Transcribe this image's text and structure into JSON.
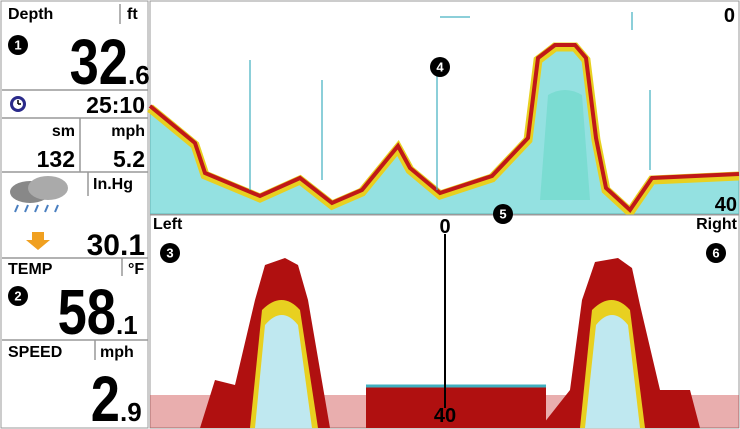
{
  "sidebar": {
    "depth": {
      "label": "Depth",
      "unit": "ft",
      "value": "32",
      "decimal": ".6"
    },
    "timer": "25:10",
    "distance": {
      "unit": "sm",
      "value": "132"
    },
    "avg_speed": {
      "unit": "mph",
      "value": "5.2"
    },
    "pressure": {
      "unit": "In.Hg",
      "value": "30.1"
    },
    "temp": {
      "label": "TEMP",
      "unit": "°F",
      "value": "58",
      "decimal": ".1"
    },
    "speed": {
      "label": "SPEED",
      "unit": "mph",
      "value": "2",
      "decimal": ".9"
    }
  },
  "top_view": {
    "scale_top": "0",
    "scale_bottom": "40"
  },
  "side_view": {
    "left": "Left",
    "right": "Right",
    "scale_top": "0",
    "scale_bottom": "40"
  },
  "callouts": [
    "1",
    "2",
    "3",
    "4",
    "5",
    "6"
  ]
}
